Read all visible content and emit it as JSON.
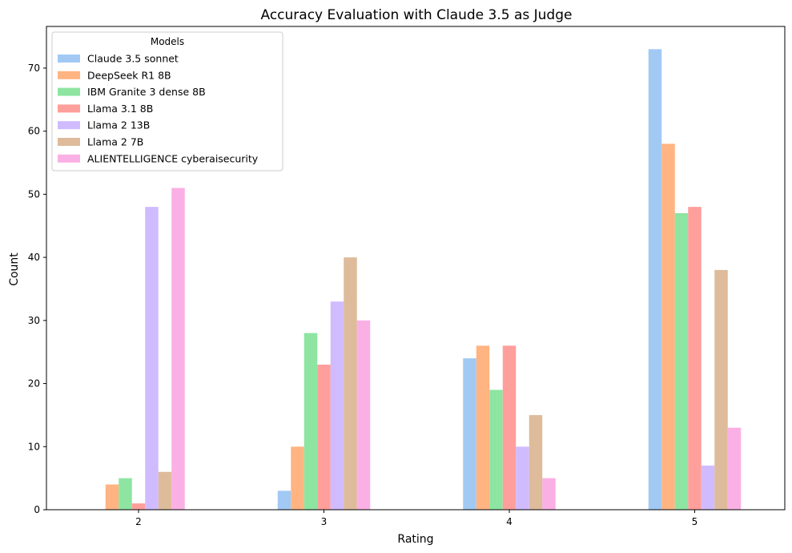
{
  "chart_data": {
    "type": "bar",
    "title": "Accuracy Evaluation with Claude 3.5 as Judge",
    "xlabel": "Rating",
    "ylabel": "Count",
    "categories": [
      "2",
      "3",
      "4",
      "5"
    ],
    "ylim": [
      0,
      76.6
    ],
    "yticks": [
      0,
      10,
      20,
      30,
      40,
      50,
      60,
      70
    ],
    "grid": false,
    "legend": {
      "title": "Models",
      "placement": "top-left"
    },
    "series": [
      {
        "name": "Claude 3.5 sonnet",
        "color": "#a1c9f4",
        "values": [
          0,
          3,
          24,
          73
        ]
      },
      {
        "name": "DeepSeek R1 8B",
        "color": "#ffb482",
        "values": [
          4,
          10,
          26,
          58
        ]
      },
      {
        "name": "IBM Granite 3 dense 8B",
        "color": "#8de5a1",
        "values": [
          5,
          28,
          19,
          47
        ]
      },
      {
        "name": "Llama 3.1 8B",
        "color": "#ff9f9b",
        "values": [
          1,
          23,
          26,
          48
        ]
      },
      {
        "name": "Llama 2 13B",
        "color": "#d0bbff",
        "values": [
          48,
          33,
          10,
          7
        ]
      },
      {
        "name": "Llama 2 7B",
        "color": "#debb9b",
        "values": [
          6,
          40,
          15,
          38
        ]
      },
      {
        "name": "ALIENTELLIGENCE cyberaisecurity",
        "color": "#fab0e4",
        "values": [
          51,
          30,
          5,
          13
        ]
      }
    ]
  }
}
